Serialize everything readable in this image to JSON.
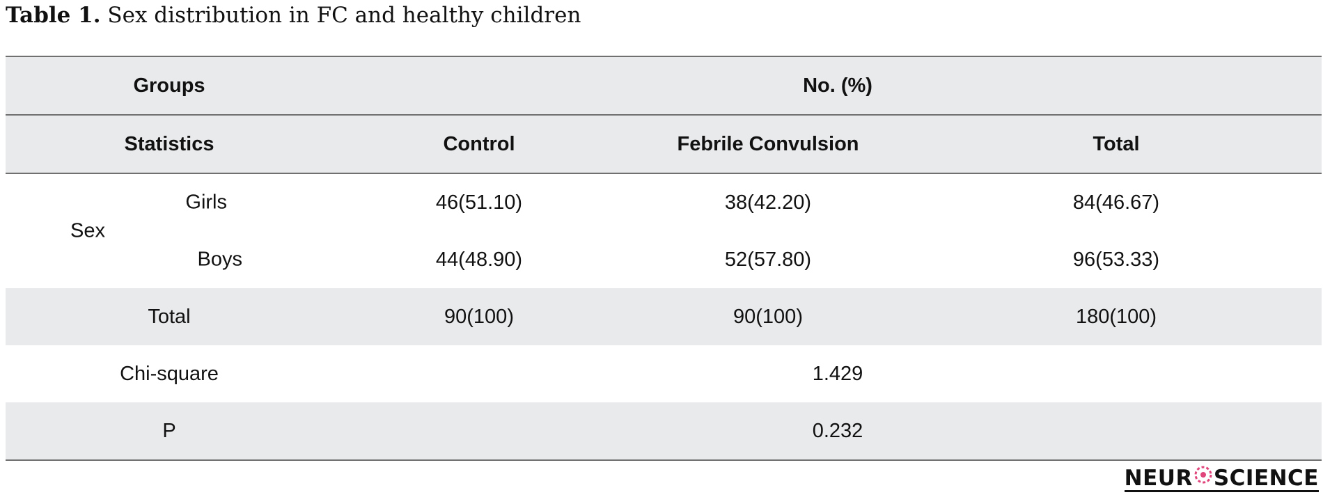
{
  "caption": {
    "label": "Table 1.",
    "text": "Sex distribution in FC and healthy children"
  },
  "header": {
    "groups": "Groups",
    "no_pct": "No. (%)",
    "statistics": "Statistics",
    "control": "Control",
    "fc": "Febrile Convulsion",
    "total": "Total"
  },
  "rows": {
    "sex_label": "Sex",
    "girls": {
      "label": "Girls",
      "control": "46(51.10)",
      "fc": "38(42.20)",
      "total": "84(46.67)"
    },
    "boys": {
      "label": "Boys",
      "control": "44(48.90)",
      "fc": "52(57.80)",
      "total": "96(53.33)"
    },
    "total": {
      "label": "Total",
      "control": "90(100)",
      "fc": "90(100)",
      "total": "180(100)"
    },
    "chi": {
      "label": "Chi-square",
      "value": "1.429"
    },
    "p": {
      "label": "P",
      "value": "0.232"
    }
  },
  "logo": {
    "part1": "NEUR",
    "part2": "SCIENCE",
    "accent": "#e0457b"
  }
}
